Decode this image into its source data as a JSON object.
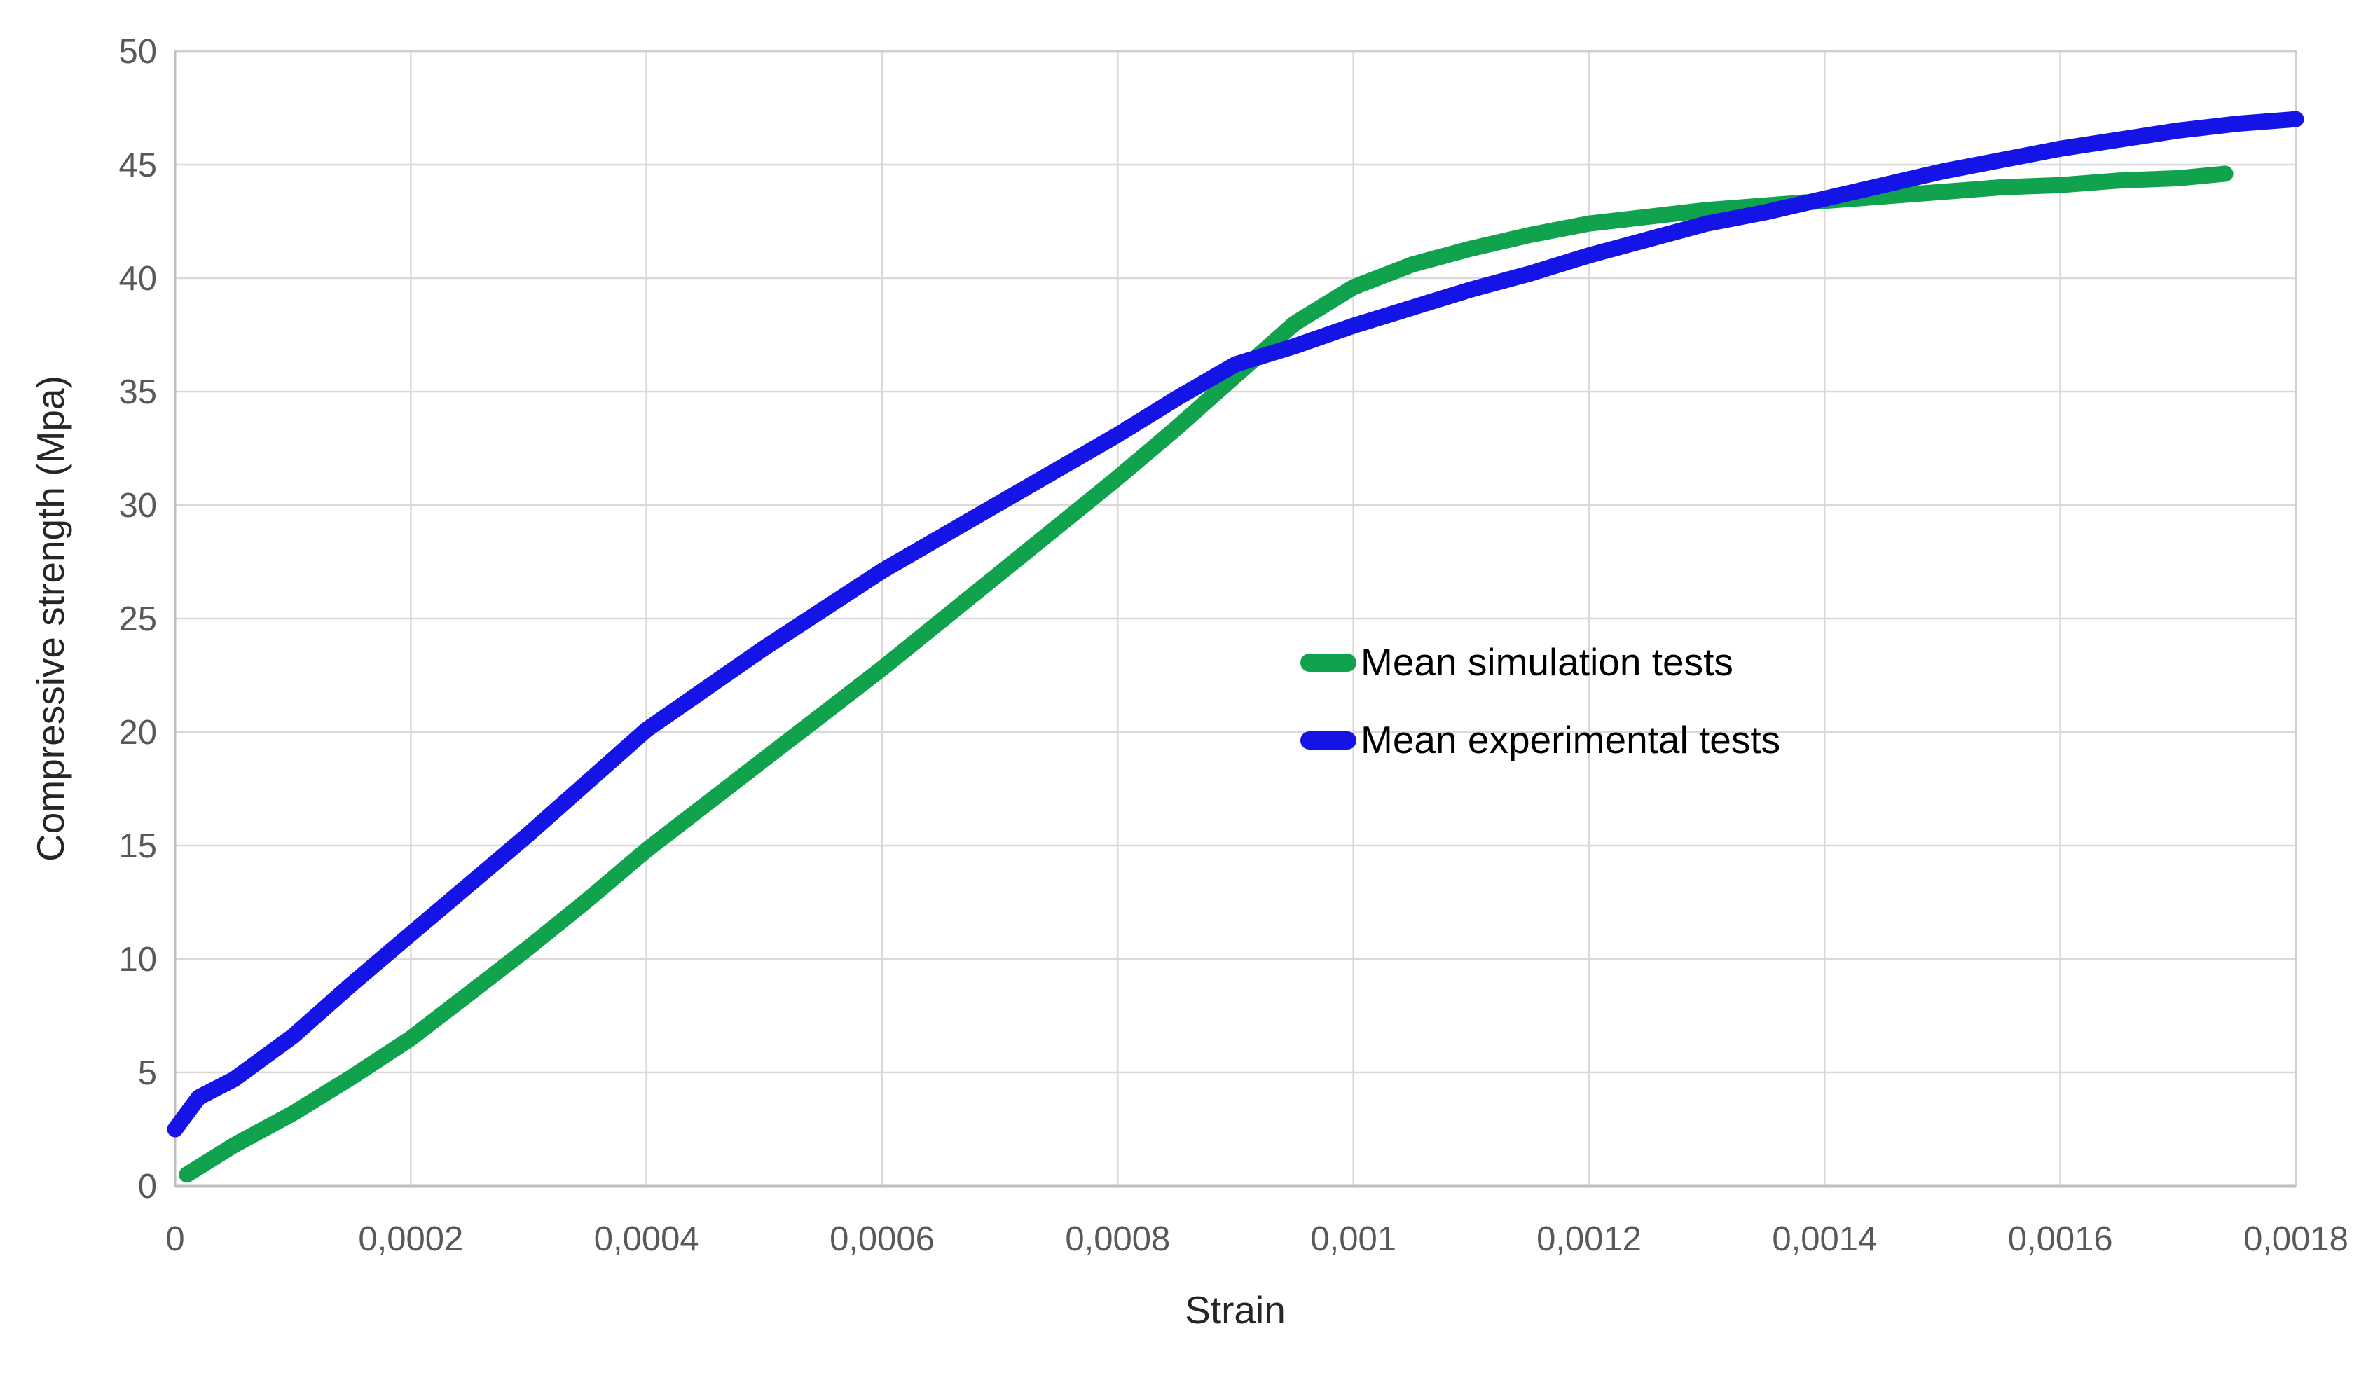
{
  "chart_data": {
    "type": "line",
    "title": "",
    "xlabel": "Strain",
    "ylabel": "Compressive strength (Mpa)",
    "xlim": [
      0,
      0.0018
    ],
    "ylim": [
      0,
      50
    ],
    "grid": true,
    "legend_position": "inside-center-right",
    "x_ticks": [
      {
        "value": 0,
        "label": "0"
      },
      {
        "value": 0.0002,
        "label": "0,0002"
      },
      {
        "value": 0.0004,
        "label": "0,0004"
      },
      {
        "value": 0.0006,
        "label": "0,0006"
      },
      {
        "value": 0.0008,
        "label": "0,0008"
      },
      {
        "value": 0.001,
        "label": "0,001"
      },
      {
        "value": 0.0012,
        "label": "0,0012"
      },
      {
        "value": 0.0014,
        "label": "0,0014"
      },
      {
        "value": 0.0016,
        "label": "0,0016"
      },
      {
        "value": 0.0018,
        "label": "0,0018"
      }
    ],
    "y_ticks": [
      {
        "value": 0,
        "label": "0"
      },
      {
        "value": 5,
        "label": "5"
      },
      {
        "value": 10,
        "label": "10"
      },
      {
        "value": 15,
        "label": "15"
      },
      {
        "value": 20,
        "label": "20"
      },
      {
        "value": 25,
        "label": "25"
      },
      {
        "value": 30,
        "label": "30"
      },
      {
        "value": 35,
        "label": "35"
      },
      {
        "value": 40,
        "label": "40"
      },
      {
        "value": 45,
        "label": "45"
      },
      {
        "value": 50,
        "label": "50"
      }
    ],
    "series": [
      {
        "name": "Mean simulation tests",
        "color": "#11A24D",
        "x": [
          1e-05,
          5e-05,
          0.0001,
          0.00015,
          0.0002,
          0.00025,
          0.0003,
          0.00035,
          0.0004,
          0.00045,
          0.0005,
          0.00055,
          0.0006,
          0.00065,
          0.0007,
          0.00075,
          0.0008,
          0.00085,
          0.0009,
          0.00095,
          0.001,
          0.00105,
          0.0011,
          0.00115,
          0.0012,
          0.00125,
          0.0013,
          0.00135,
          0.0014,
          0.00145,
          0.0015,
          0.00155,
          0.0016,
          0.00165,
          0.0017,
          0.00174
        ],
        "y": [
          0.5,
          1.8,
          3.2,
          4.8,
          6.5,
          8.5,
          10.5,
          12.6,
          14.8,
          16.8,
          18.8,
          20.8,
          22.8,
          24.9,
          27.0,
          29.1,
          31.2,
          33.4,
          35.7,
          38.0,
          39.6,
          40.6,
          41.3,
          41.9,
          42.4,
          42.7,
          43.0,
          43.2,
          43.4,
          43.6,
          43.8,
          44.0,
          44.1,
          44.3,
          44.4,
          44.6
        ]
      },
      {
        "name": "Mean experimental tests",
        "color": "#1414E6",
        "x": [
          0,
          2e-05,
          5e-05,
          0.0001,
          0.00015,
          0.0002,
          0.00025,
          0.0003,
          0.00035,
          0.0004,
          0.00045,
          0.0005,
          0.00055,
          0.0006,
          0.00065,
          0.0007,
          0.00075,
          0.0008,
          0.00085,
          0.0009,
          0.00095,
          0.001,
          0.00105,
          0.0011,
          0.00115,
          0.0012,
          0.00125,
          0.0013,
          0.00135,
          0.0014,
          0.00145,
          0.0015,
          0.00155,
          0.0016,
          0.00165,
          0.0017,
          0.00175,
          0.0018
        ],
        "y": [
          2.5,
          3.9,
          4.7,
          6.6,
          8.9,
          11.1,
          13.3,
          15.5,
          17.8,
          20.1,
          21.9,
          23.7,
          25.4,
          27.1,
          28.6,
          30.1,
          31.6,
          33.1,
          34.7,
          36.2,
          37.0,
          37.9,
          38.7,
          39.5,
          40.2,
          41.0,
          41.7,
          42.4,
          42.9,
          43.5,
          44.1,
          44.7,
          45.2,
          45.7,
          46.1,
          46.5,
          46.8,
          47.0
        ]
      }
    ],
    "colors": {
      "gridline": "#D9D9D9",
      "plot_border": "#D0D0D0",
      "axis_line": "#BFBFBF",
      "tick_label": "#595959",
      "axis_title": "#262626",
      "legend_text": "#000000",
      "background": "#FFFFFF"
    }
  }
}
